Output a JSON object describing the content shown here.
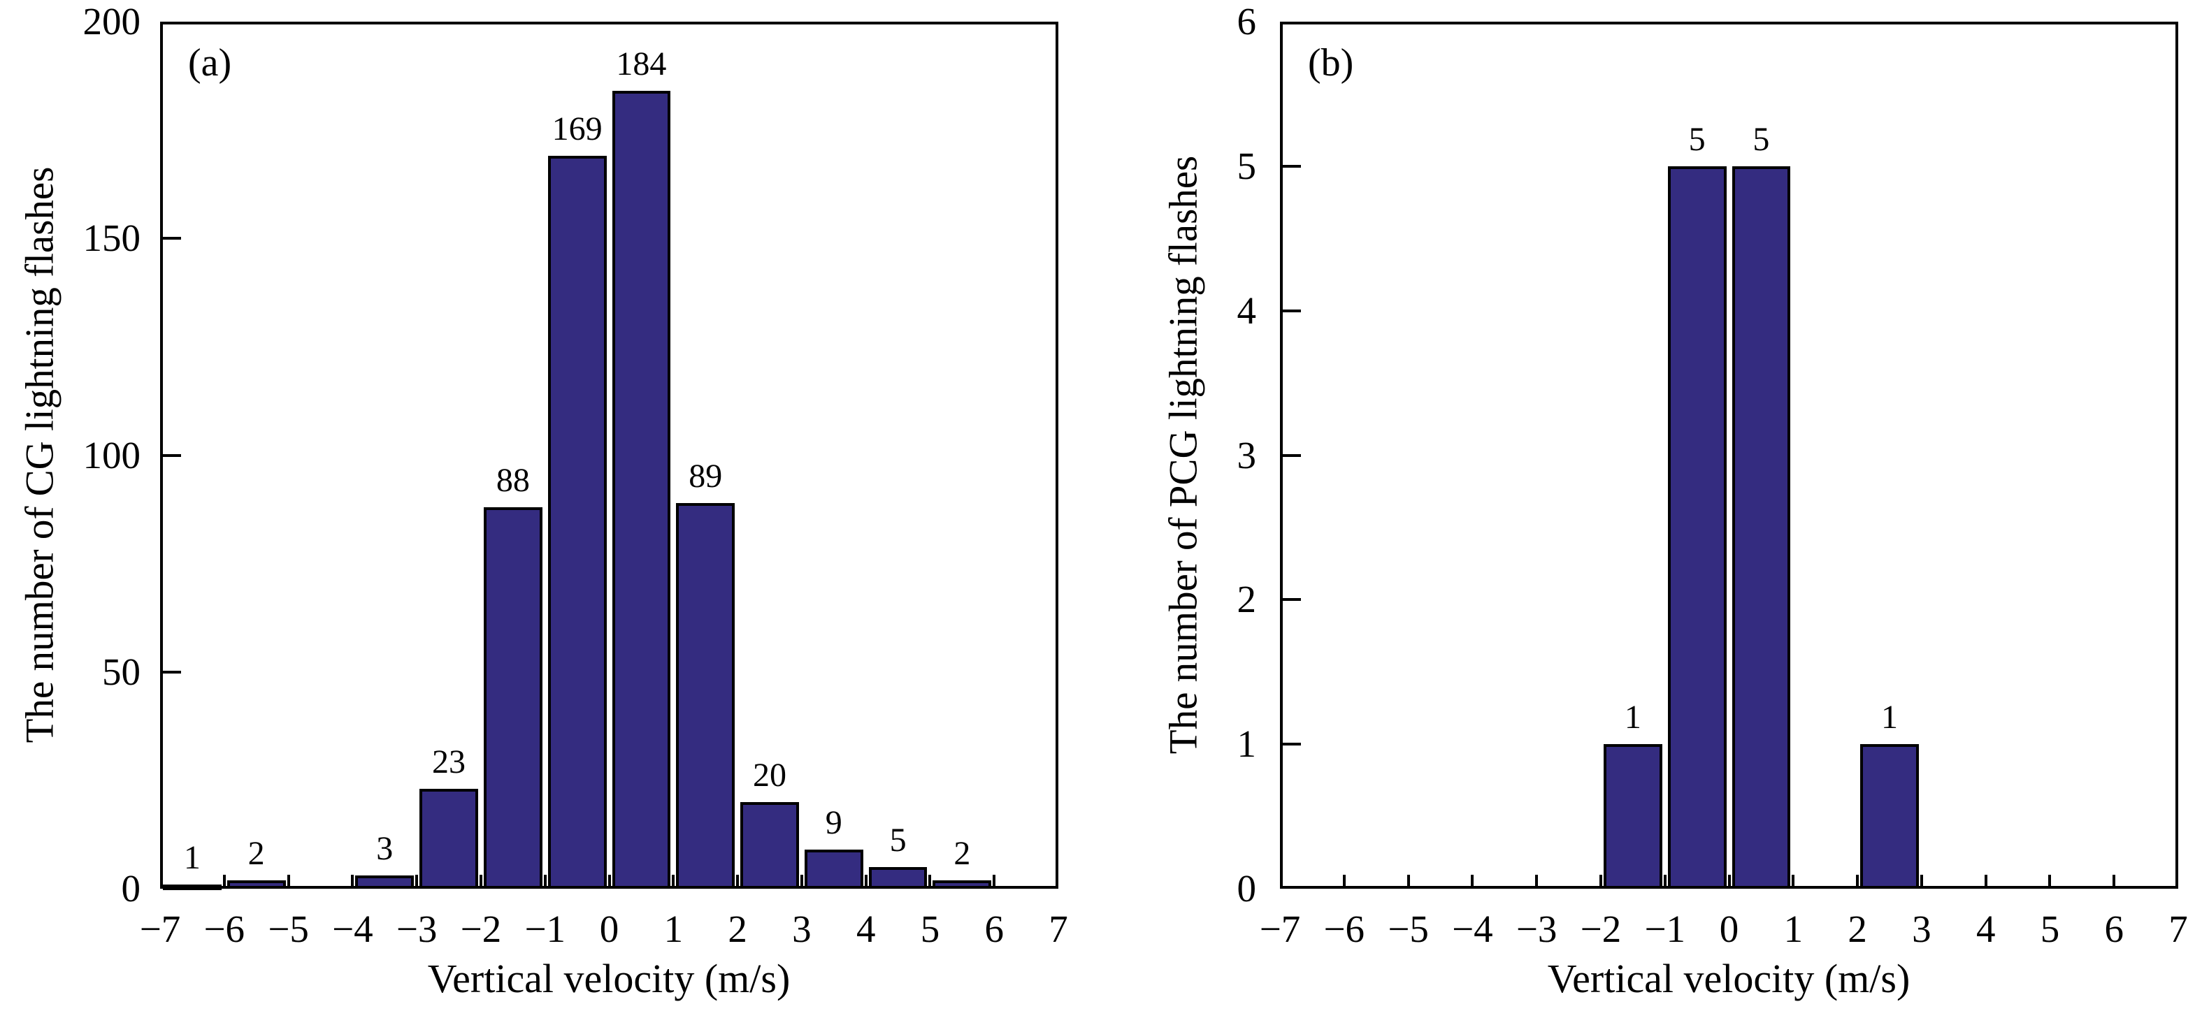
{
  "figure": {
    "background": "#ffffff",
    "axis_color": "#000000",
    "bar_fill": "#342C80",
    "bar_stroke": "#000000"
  },
  "chart_data": [
    {
      "type": "bar",
      "panel_label": "(a)",
      "xlabel": "Vertical velocity (m/s)",
      "ylabel": "The number of CG lightning flashes",
      "xlim": [
        -7,
        7
      ],
      "ylim": [
        0,
        200
      ],
      "grid": false,
      "legend": null,
      "bin_width": 1,
      "x_ticks": [
        -7,
        -6,
        -5,
        -4,
        -3,
        -2,
        -1,
        0,
        1,
        2,
        3,
        4,
        5,
        6,
        7
      ],
      "x_tick_labels": [
        "−7",
        "−6",
        "−5",
        "−4",
        "−3",
        "−2",
        "−1",
        "0",
        "1",
        "2",
        "3",
        "4",
        "5",
        "6",
        "7"
      ],
      "y_ticks": [
        0,
        50,
        100,
        150,
        200
      ],
      "y_tick_labels": [
        "0",
        "50",
        "100",
        "150",
        "200"
      ],
      "bins": [
        {
          "start": -7,
          "end": -6,
          "value": 1,
          "label": "1"
        },
        {
          "start": -6,
          "end": -5,
          "value": 2,
          "label": "2"
        },
        {
          "start": -4,
          "end": -3,
          "value": 3,
          "label": "3"
        },
        {
          "start": -3,
          "end": -2,
          "value": 23,
          "label": "23"
        },
        {
          "start": -2,
          "end": -1,
          "value": 88,
          "label": "88"
        },
        {
          "start": -1,
          "end": 0,
          "value": 169,
          "label": "169"
        },
        {
          "start": 0,
          "end": 1,
          "value": 184,
          "label": "184"
        },
        {
          "start": 1,
          "end": 2,
          "value": 89,
          "label": "89"
        },
        {
          "start": 2,
          "end": 3,
          "value": 20,
          "label": "20"
        },
        {
          "start": 3,
          "end": 4,
          "value": 9,
          "label": "9"
        },
        {
          "start": 4,
          "end": 5,
          "value": 5,
          "label": "5"
        },
        {
          "start": 5,
          "end": 6,
          "value": 2,
          "label": "2"
        }
      ]
    },
    {
      "type": "bar",
      "panel_label": "(b)",
      "xlabel": "Vertical velocity (m/s)",
      "ylabel": "The number of PCG lightning flashes",
      "xlim": [
        -7,
        7
      ],
      "ylim": [
        0,
        6
      ],
      "grid": false,
      "legend": null,
      "bin_width": 1,
      "x_ticks": [
        -7,
        -6,
        -5,
        -4,
        -3,
        -2,
        -1,
        0,
        1,
        2,
        3,
        4,
        5,
        6,
        7
      ],
      "x_tick_labels": [
        "−7",
        "−6",
        "−5",
        "−4",
        "−3",
        "−2",
        "−1",
        "0",
        "1",
        "2",
        "3",
        "4",
        "5",
        "6",
        "7"
      ],
      "y_ticks": [
        0,
        1,
        2,
        3,
        4,
        5,
        6
      ],
      "y_tick_labels": [
        "0",
        "1",
        "2",
        "3",
        "4",
        "5",
        "6"
      ],
      "bins": [
        {
          "start": -2,
          "end": -1,
          "value": 1,
          "label": "1"
        },
        {
          "start": -1,
          "end": 0,
          "value": 5,
          "label": "5"
        },
        {
          "start": 0,
          "end": 1,
          "value": 5,
          "label": "5"
        },
        {
          "start": 2,
          "end": 3,
          "value": 1,
          "label": "1"
        }
      ]
    }
  ]
}
